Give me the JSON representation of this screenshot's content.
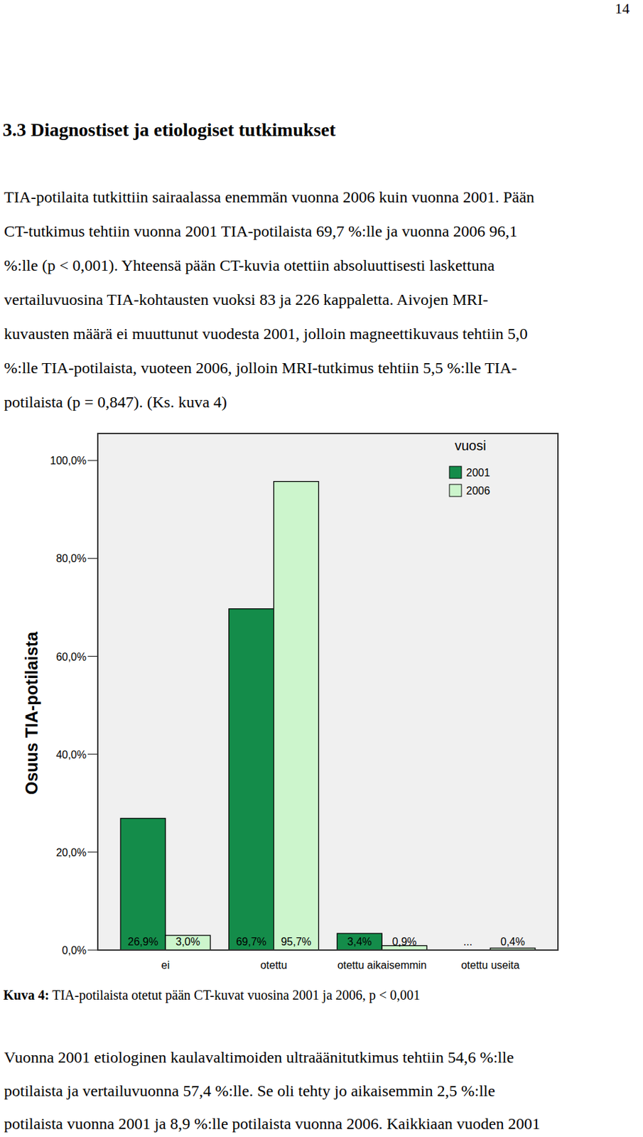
{
  "page_number": "14",
  "heading": "3.3 Diagnostiset ja etiologiset tutkimukset",
  "paragraph_1": [
    "TIA-potilaita tutkittiin sairaalassa enemmän vuonna 2006 kuin vuonna 2001. Pään",
    "CT-tutkimus tehtiin vuonna 2001 TIA-potilaista 69,7 %:lle ja vuonna 2006 96,1",
    "%:lle (p < 0,001). Yhteensä pään CT-kuvia otettiin absoluuttisesti laskettuna",
    "vertailuvuosina TIA-kohtausten vuoksi 83 ja 226 kappaletta. Aivojen MRI-",
    "kuvausten määrä ei muuttunut vuodesta 2001, jolloin magneettikuvaus tehtiin 5,0",
    "%:lle TIA-potilaista, vuoteen 2006, jolloin MRI-tutkimus tehtiin 5,5 %:lle TIA-",
    "potilaista (p = 0,847). (Ks. kuva 4)"
  ],
  "chart_data": {
    "type": "bar",
    "y_label": "Osuus TIA-potilaista",
    "legend_title": "vuosi",
    "categories": [
      "ei",
      "otettu",
      "otettu aikaisemmin",
      "otettu useita"
    ],
    "series": [
      {
        "name": "2001",
        "color": "#148c4a",
        "values": [
          26.9,
          69.7,
          3.4,
          null
        ],
        "value_labels": [
          "26,9%",
          "69,7%",
          "3,4%",
          "..."
        ]
      },
      {
        "name": "2006",
        "color": "#ccf5cc",
        "values": [
          3.0,
          95.7,
          0.9,
          0.4
        ],
        "value_labels": [
          "3,0%",
          "95,7%",
          "0,9%",
          "0,4%"
        ]
      }
    ],
    "ylim": [
      0,
      105.5
    ],
    "yticks": [
      {
        "value": 0,
        "label": "0,0%"
      },
      {
        "value": 20,
        "label": "20,0%"
      },
      {
        "value": 40,
        "label": "40,0%"
      },
      {
        "value": 60,
        "label": "60,0%"
      },
      {
        "value": 80,
        "label": "80,0%"
      },
      {
        "value": 100,
        "label": "100,0%"
      }
    ],
    "grid": false,
    "legend": "top-right",
    "data_labels": true
  },
  "caption": {
    "label": "Kuva 4:",
    "text": " TIA-potilaista otetut pään CT-kuvat vuosina 2001 ja 2006, p < 0,001"
  },
  "paragraph_2": [
    "Vuonna 2001 etiologinen kaulavaltimoiden ultraäänitutkimus tehtiin 54,6 %:lle",
    "potilaista ja vertailuvuonna 57,4 %:lle. Se oli tehty jo aikaisemmin 2,5 %:lle",
    "potilaista vuonna 2001 ja 8,9 %:lle potilaista vuonna 2006. Kaikkiaan vuoden 2001"
  ]
}
